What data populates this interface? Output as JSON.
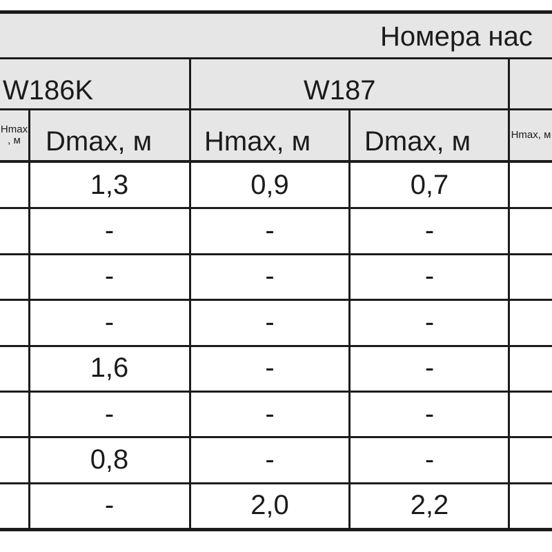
{
  "table": {
    "group_header": "Номера нас",
    "models": [
      "W186K",
      "W187"
    ],
    "column_headers": [
      "Hmax, м",
      "Dmax, м",
      "Hmax, м",
      "Dmax, м",
      "Hmax, м"
    ],
    "rows": [
      [
        "",
        "1,3",
        "0,9",
        "0,7",
        ""
      ],
      [
        "",
        "-",
        "-",
        "-",
        ""
      ],
      [
        "",
        "-",
        "-",
        "-",
        ""
      ],
      [
        "",
        "-",
        "-",
        "-",
        ""
      ],
      [
        "",
        "1,6",
        "-",
        "-",
        ""
      ],
      [
        "",
        "-",
        "-",
        "-",
        ""
      ],
      [
        "",
        "0,8",
        "-",
        "-",
        ""
      ],
      [
        "",
        "-",
        "2,0",
        "2,2",
        ""
      ]
    ]
  },
  "colors": {
    "header_bg": "#e6e6e7",
    "border": "#1b1b1b"
  }
}
